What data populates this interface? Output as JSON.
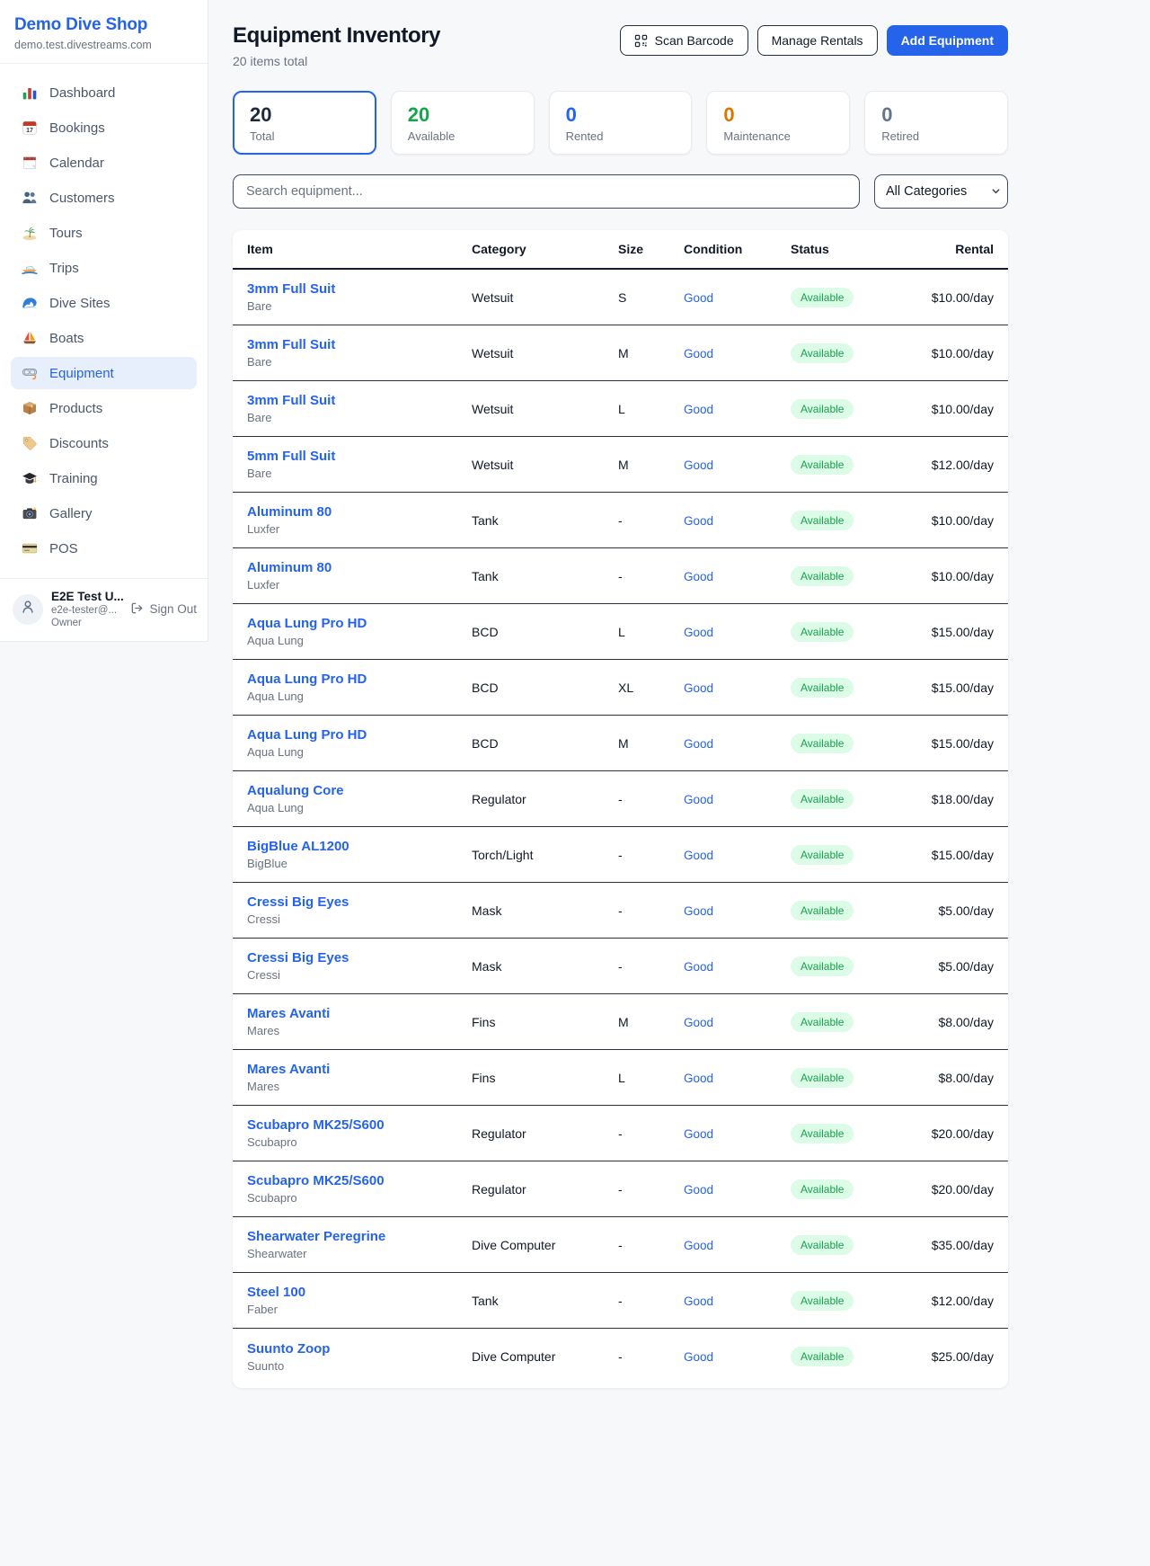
{
  "palette": {
    "accent_blue": "#2563eb",
    "available_green": "#16a34a",
    "available_badge_bg": "#dcfce7",
    "maintenance_orange": "#d97706",
    "retired_gray": "#64748b"
  },
  "sidebar": {
    "shop_name": "Demo Dive Shop",
    "shop_domain": "demo.test.divestreams.com",
    "items": [
      {
        "icon": "bar-chart-icon",
        "label": "Dashboard"
      },
      {
        "icon": "calendar-date-icon",
        "label": "Bookings"
      },
      {
        "icon": "spiral-calendar-icon",
        "label": "Calendar"
      },
      {
        "icon": "people-icon",
        "label": "Customers"
      },
      {
        "icon": "island-icon",
        "label": "Tours"
      },
      {
        "icon": "speedboat-icon",
        "label": "Trips"
      },
      {
        "icon": "wave-icon",
        "label": "Dive Sites"
      },
      {
        "icon": "sailboat-icon",
        "label": "Boats"
      },
      {
        "icon": "dive-mask-icon",
        "label": "Equipment",
        "active": true
      },
      {
        "icon": "package-icon",
        "label": "Products"
      },
      {
        "icon": "tag-icon",
        "label": "Discounts"
      },
      {
        "icon": "grad-cap-icon",
        "label": "Training"
      },
      {
        "icon": "camera-icon",
        "label": "Gallery"
      },
      {
        "icon": "credit-card-icon",
        "label": "POS"
      }
    ],
    "user": {
      "name": "E2E Test U...",
      "email": "e2e-tester@...",
      "role": "Owner",
      "sign_out_label": "Sign Out"
    }
  },
  "header": {
    "title": "Equipment Inventory",
    "subtitle": "20 items total",
    "scan_barcode_label": "Scan Barcode",
    "manage_rentals_label": "Manage Rentals",
    "add_equipment_label": "Add Equipment"
  },
  "stats": [
    {
      "value": "20",
      "label": "Total",
      "color": "#1e293b",
      "selected": true
    },
    {
      "value": "20",
      "label": "Available",
      "color": "#16a34a"
    },
    {
      "value": "0",
      "label": "Rented",
      "color": "#2563eb"
    },
    {
      "value": "0",
      "label": "Maintenance",
      "color": "#d97706"
    },
    {
      "value": "0",
      "label": "Retired",
      "color": "#64748b"
    }
  ],
  "filters": {
    "search_placeholder": "Search equipment...",
    "category_selected": "All Categories"
  },
  "table": {
    "columns": [
      {
        "label": "Item"
      },
      {
        "label": "Category"
      },
      {
        "label": "Size"
      },
      {
        "label": "Condition"
      },
      {
        "label": "Status"
      },
      {
        "label": "Rental",
        "align": "right"
      }
    ],
    "rows": [
      {
        "name": "3mm Full Suit",
        "brand": "Bare",
        "category": "Wetsuit",
        "size": "S",
        "condition": "Good",
        "status": "Available",
        "rental": "$10.00/day"
      },
      {
        "name": "3mm Full Suit",
        "brand": "Bare",
        "category": "Wetsuit",
        "size": "M",
        "condition": "Good",
        "status": "Available",
        "rental": "$10.00/day"
      },
      {
        "name": "3mm Full Suit",
        "brand": "Bare",
        "category": "Wetsuit",
        "size": "L",
        "condition": "Good",
        "status": "Available",
        "rental": "$10.00/day"
      },
      {
        "name": "5mm Full Suit",
        "brand": "Bare",
        "category": "Wetsuit",
        "size": "M",
        "condition": "Good",
        "status": "Available",
        "rental": "$12.00/day"
      },
      {
        "name": "Aluminum 80",
        "brand": "Luxfer",
        "category": "Tank",
        "size": "-",
        "condition": "Good",
        "status": "Available",
        "rental": "$10.00/day"
      },
      {
        "name": "Aluminum 80",
        "brand": "Luxfer",
        "category": "Tank",
        "size": "-",
        "condition": "Good",
        "status": "Available",
        "rental": "$10.00/day"
      },
      {
        "name": "Aqua Lung Pro HD",
        "brand": "Aqua Lung",
        "category": "BCD",
        "size": "L",
        "condition": "Good",
        "status": "Available",
        "rental": "$15.00/day"
      },
      {
        "name": "Aqua Lung Pro HD",
        "brand": "Aqua Lung",
        "category": "BCD",
        "size": "XL",
        "condition": "Good",
        "status": "Available",
        "rental": "$15.00/day"
      },
      {
        "name": "Aqua Lung Pro HD",
        "brand": "Aqua Lung",
        "category": "BCD",
        "size": "M",
        "condition": "Good",
        "status": "Available",
        "rental": "$15.00/day"
      },
      {
        "name": "Aqualung Core",
        "brand": "Aqua Lung",
        "category": "Regulator",
        "size": "-",
        "condition": "Good",
        "status": "Available",
        "rental": "$18.00/day"
      },
      {
        "name": "BigBlue AL1200",
        "brand": "BigBlue",
        "category": "Torch/Light",
        "size": "-",
        "condition": "Good",
        "status": "Available",
        "rental": "$15.00/day"
      },
      {
        "name": "Cressi Big Eyes",
        "brand": "Cressi",
        "category": "Mask",
        "size": "-",
        "condition": "Good",
        "status": "Available",
        "rental": "$5.00/day"
      },
      {
        "name": "Cressi Big Eyes",
        "brand": "Cressi",
        "category": "Mask",
        "size": "-",
        "condition": "Good",
        "status": "Available",
        "rental": "$5.00/day"
      },
      {
        "name": "Mares Avanti",
        "brand": "Mares",
        "category": "Fins",
        "size": "M",
        "condition": "Good",
        "status": "Available",
        "rental": "$8.00/day"
      },
      {
        "name": "Mares Avanti",
        "brand": "Mares",
        "category": "Fins",
        "size": "L",
        "condition": "Good",
        "status": "Available",
        "rental": "$8.00/day"
      },
      {
        "name": "Scubapro MK25/S600",
        "brand": "Scubapro",
        "category": "Regulator",
        "size": "-",
        "condition": "Good",
        "status": "Available",
        "rental": "$20.00/day"
      },
      {
        "name": "Scubapro MK25/S600",
        "brand": "Scubapro",
        "category": "Regulator",
        "size": "-",
        "condition": "Good",
        "status": "Available",
        "rental": "$20.00/day"
      },
      {
        "name": "Shearwater Peregrine",
        "brand": "Shearwater",
        "category": "Dive Computer",
        "size": "-",
        "condition": "Good",
        "status": "Available",
        "rental": "$35.00/day"
      },
      {
        "name": "Steel 100",
        "brand": "Faber",
        "category": "Tank",
        "size": "-",
        "condition": "Good",
        "status": "Available",
        "rental": "$12.00/day"
      },
      {
        "name": "Suunto Zoop",
        "brand": "Suunto",
        "category": "Dive Computer",
        "size": "-",
        "condition": "Good",
        "status": "Available",
        "rental": "$25.00/day"
      }
    ]
  }
}
